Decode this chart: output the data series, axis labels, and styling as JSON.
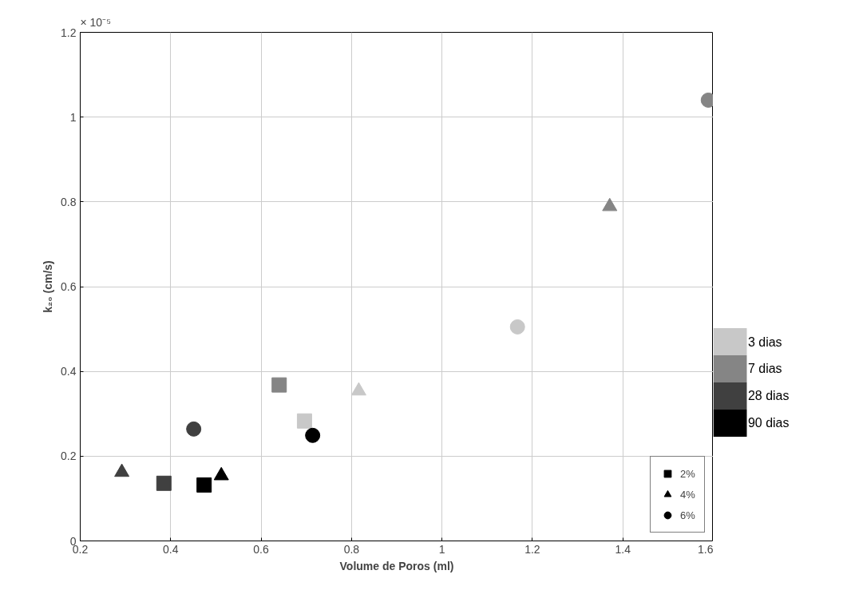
{
  "chart_data": [
    {
      "type": "scatter",
      "xlabel": "Volume de Poros (ml)",
      "ylabel": "k₂₀ (cm/s)",
      "annotations": [
        "× 10⁻⁵"
      ],
      "xlim": [
        0.2,
        1.6
      ],
      "xticks": [
        0.2,
        0.4,
        0.6,
        0.8,
        1,
        1.2,
        1.4,
        1.6
      ],
      "ylim": [
        0,
        1.2
      ],
      "yticks": [
        0,
        0.2,
        0.4,
        0.6,
        0.8,
        1,
        1.2
      ],
      "grid": true,
      "legend": "bottom right",
      "series": [
        {
          "name": "2%",
          "marker": "square",
          "colors": [
            "#c8c8c8",
            "#858585",
            "#404040",
            "#000000"
          ],
          "x": [
            0.696,
            0.64,
            0.385,
            0.474
          ],
          "values": [
            0.283,
            0.368,
            0.136,
            0.132
          ]
        },
        {
          "name": "4%",
          "marker": "triangle",
          "colors": [
            "#c8c8c8",
            "#858585",
            "#404040",
            "#000000"
          ],
          "x": [
            0.816,
            1.371,
            0.292,
            0.512
          ],
          "values": [
            0.354,
            0.789,
            0.162,
            0.154
          ]
        },
        {
          "name": "6%",
          "marker": "circle",
          "colors": [
            "#c8c8c8",
            "#858585",
            "#404040",
            "#000000"
          ],
          "x": [
            1.167,
            1.589,
            0.451,
            0.714
          ],
          "values": [
            0.505,
            1.04,
            0.264,
            0.249
          ]
        }
      ]
    },
    {
      "type": "other",
      "categories": [
        "3 dias",
        "7 dias",
        "28 dias",
        "90 dias"
      ],
      "colors": [
        "#c8c8c8",
        "#858585",
        "#404040",
        "#000000"
      ]
    }
  ]
}
